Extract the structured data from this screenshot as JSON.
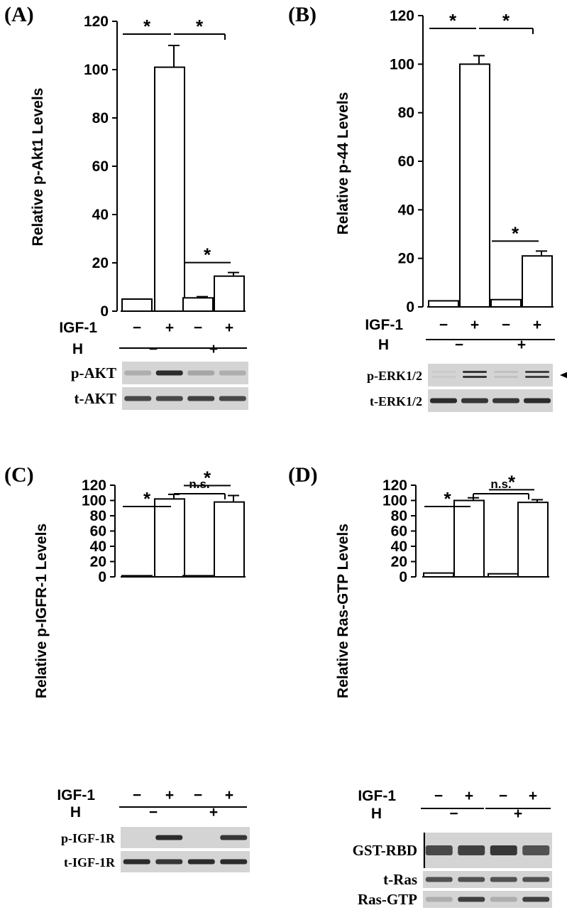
{
  "chart_data": [
    {
      "type": "bar",
      "panel_label": "(A)",
      "ylabel": "Relative  p-Akt1  Levels",
      "ylim": [
        0,
        120
      ],
      "yticks": [
        "0",
        "20",
        "40",
        "60",
        "80",
        "100",
        "120"
      ],
      "values": [
        5,
        101,
        5.5,
        14.5
      ],
      "errors": [
        0,
        9,
        0.5,
        1.5
      ],
      "conditions": {
        "igf1_label": "IGF-1",
        "igf1": [
          "−",
          "+",
          "−",
          "+"
        ],
        "h_label": "H",
        "h": [
          "−",
          "+"
        ]
      },
      "significance": [
        {
          "from": 0,
          "to": 1,
          "label": "*"
        },
        {
          "from": 1,
          "to": 3,
          "label": "*"
        },
        {
          "from": 2,
          "to": 3,
          "label": "*"
        }
      ],
      "blots": [
        {
          "label": "p-AKT",
          "bands": [
            0.2,
            0.9,
            0.25,
            0.2
          ]
        },
        {
          "label": "t-AKT",
          "bands": [
            0.75,
            0.75,
            0.8,
            0.75
          ]
        }
      ]
    },
    {
      "type": "bar",
      "panel_label": "(B)",
      "ylabel": "Relative  p-44  Levels",
      "ylim": [
        0,
        120
      ],
      "yticks": [
        "0",
        "20",
        "40",
        "60",
        "80",
        "100",
        "120"
      ],
      "values": [
        2.5,
        100,
        3,
        21
      ],
      "errors": [
        0,
        3.5,
        0,
        2
      ],
      "conditions": {
        "igf1_label": "IGF-1",
        "igf1": [
          "−",
          "+",
          "−",
          "+"
        ],
        "h_label": "H",
        "h": [
          "−",
          "+"
        ]
      },
      "significance": [
        {
          "from": 0,
          "to": 1,
          "label": "*"
        },
        {
          "from": 1,
          "to": 3,
          "label": "*"
        },
        {
          "from": 2,
          "to": 3,
          "label": "*"
        }
      ],
      "blots": [
        {
          "label": "p-ERK1/2",
          "bands": [
            0.05,
            0.85,
            0.1,
            0.8
          ],
          "double": true,
          "arrow": true
        },
        {
          "label": "t-ERK1/2",
          "bands": [
            0.9,
            0.85,
            0.85,
            0.9
          ]
        }
      ]
    },
    {
      "type": "bar",
      "panel_label": "(C)",
      "ylabel": "Relative  p-IGFR-1  Levels",
      "ylim": [
        0,
        120
      ],
      "yticks": [
        "0",
        "20",
        "40",
        "60",
        "80",
        "100",
        "120"
      ],
      "values": [
        1.5,
        102,
        1.5,
        98
      ],
      "errors": [
        0,
        6,
        0,
        8.5
      ],
      "conditions": {
        "igf1_label": "IGF-1",
        "igf1": [
          "−",
          "+",
          "−",
          "+"
        ],
        "h_label": "H",
        "h": [
          "−",
          "+"
        ]
      },
      "significance": [
        {
          "from": 0,
          "to": 1,
          "label": "*"
        },
        {
          "from": 1,
          "to": 3,
          "label": "n.s."
        },
        {
          "from": 2,
          "to": 3,
          "label": "*"
        }
      ],
      "blots": [
        {
          "label": "p-IGF-1R",
          "bands": [
            0.0,
            0.9,
            0.0,
            0.85
          ]
        },
        {
          "label": "t-IGF-1R",
          "bands": [
            0.9,
            0.85,
            0.9,
            0.9
          ]
        }
      ]
    },
    {
      "type": "bar",
      "panel_label": "(D)",
      "ylabel": "Relative Ras-GTP  Levels",
      "ylim": [
        0,
        120
      ],
      "yticks": [
        "0",
        "20",
        "40",
        "60",
        "80",
        "100",
        "120"
      ],
      "values": [
        5,
        100,
        4,
        97.5
      ],
      "errors": [
        0,
        3.5,
        0,
        3.5
      ],
      "conditions": {
        "igf1_label": "IGF-1",
        "igf1": [
          "−",
          "+",
          "−",
          "+"
        ],
        "h_label": "H",
        "h": [
          "−",
          "+"
        ]
      },
      "significance": [
        {
          "from": 0,
          "to": 1,
          "label": "*"
        },
        {
          "from": 1,
          "to": 3,
          "label": "n.s."
        },
        {
          "from": 2,
          "to": 3,
          "label": "*"
        }
      ],
      "blots": [
        {
          "label": "GST-RBD",
          "bands": [
            0.75,
            0.8,
            0.85,
            0.7
          ],
          "tall": true
        },
        {
          "label": "t-Ras",
          "bands": [
            0.7,
            0.7,
            0.7,
            0.7
          ]
        },
        {
          "label": "Ras-GTP",
          "bands": [
            0.2,
            0.8,
            0.2,
            0.8
          ]
        }
      ]
    }
  ],
  "colors": {
    "ink": "#000000",
    "bar_fill": "#ffffff",
    "blot_bg": "#d4d4d4",
    "band": "#1a1a1a"
  }
}
